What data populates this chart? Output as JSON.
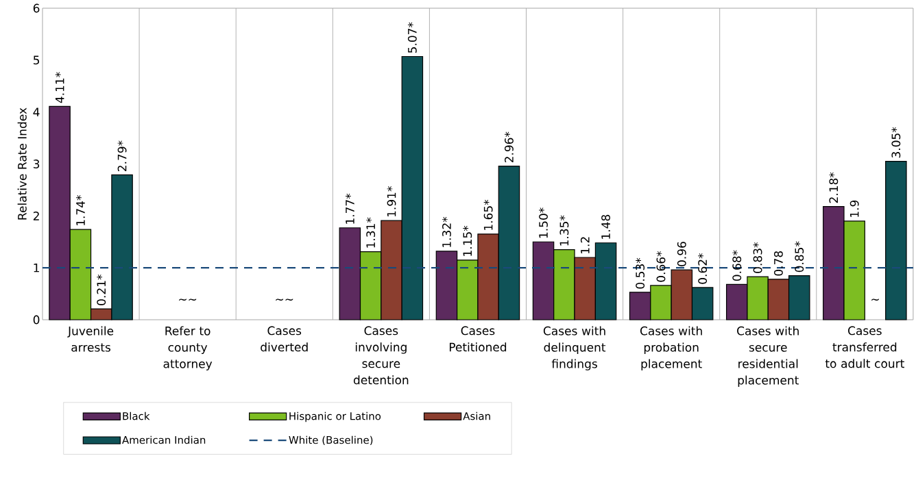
{
  "chart_data": {
    "type": "bar",
    "ylabel": "Relative Rate Index",
    "categories": [
      "Juvenile arrests",
      "Refer to county attorney",
      "Cases diverted",
      "Cases involving secure detention",
      "Cases Petitioned",
      "Cases with delinquent findings",
      "Cases with probation placement",
      "Cases with secure residential placement",
      "Cases transferred to adult court"
    ],
    "series": [
      {
        "name": "Black",
        "color": "#5c2a5e",
        "values": [
          4.11,
          null,
          null,
          1.77,
          1.32,
          1.5,
          0.53,
          0.68,
          2.18
        ],
        "value_labels": [
          "4.11*",
          null,
          null,
          "1.77*",
          "1.32*",
          "1.50*",
          "0.53*",
          "0.68*",
          "2.18*"
        ]
      },
      {
        "name": "Hispanic or Latino",
        "color": "#7dbd22",
        "values": [
          1.74,
          null,
          null,
          1.31,
          1.15,
          1.35,
          0.66,
          0.83,
          1.9
        ],
        "value_labels": [
          "1.74*",
          null,
          null,
          "1.31*",
          "1.15*",
          "1.35*",
          "0.66*",
          "0.83*",
          "1.9"
        ]
      },
      {
        "name": "Asian",
        "color": "#8b3e2f",
        "values": [
          0.21,
          null,
          null,
          1.91,
          1.65,
          1.2,
          0.96,
          0.78,
          null
        ],
        "value_labels": [
          "0.21*",
          null,
          null,
          "1.91*",
          "1.65*",
          "1.2",
          "0.96",
          "0.78",
          null
        ]
      },
      {
        "name": "American Indian",
        "color": "#0f5257",
        "values": [
          2.79,
          null,
          null,
          5.07,
          2.96,
          1.48,
          0.62,
          0.85,
          3.05
        ],
        "value_labels": [
          "2.79*",
          null,
          null,
          "5.07*",
          "2.96*",
          "1.48",
          "0.62*",
          "0.85*",
          "3.05*"
        ]
      }
    ],
    "ref_lines": [
      {
        "axis": "y",
        "value": 1,
        "label": "White (Baseline)",
        "color": "#1a4a7a",
        "line_style": "dashed"
      }
    ],
    "annotations": [
      "~~",
      "~~",
      "~"
    ],
    "ylim": [
      0,
      6
    ],
    "yticks": [
      0,
      1,
      2,
      3,
      4,
      5,
      6
    ],
    "grid": "x",
    "legend": "bottom"
  }
}
